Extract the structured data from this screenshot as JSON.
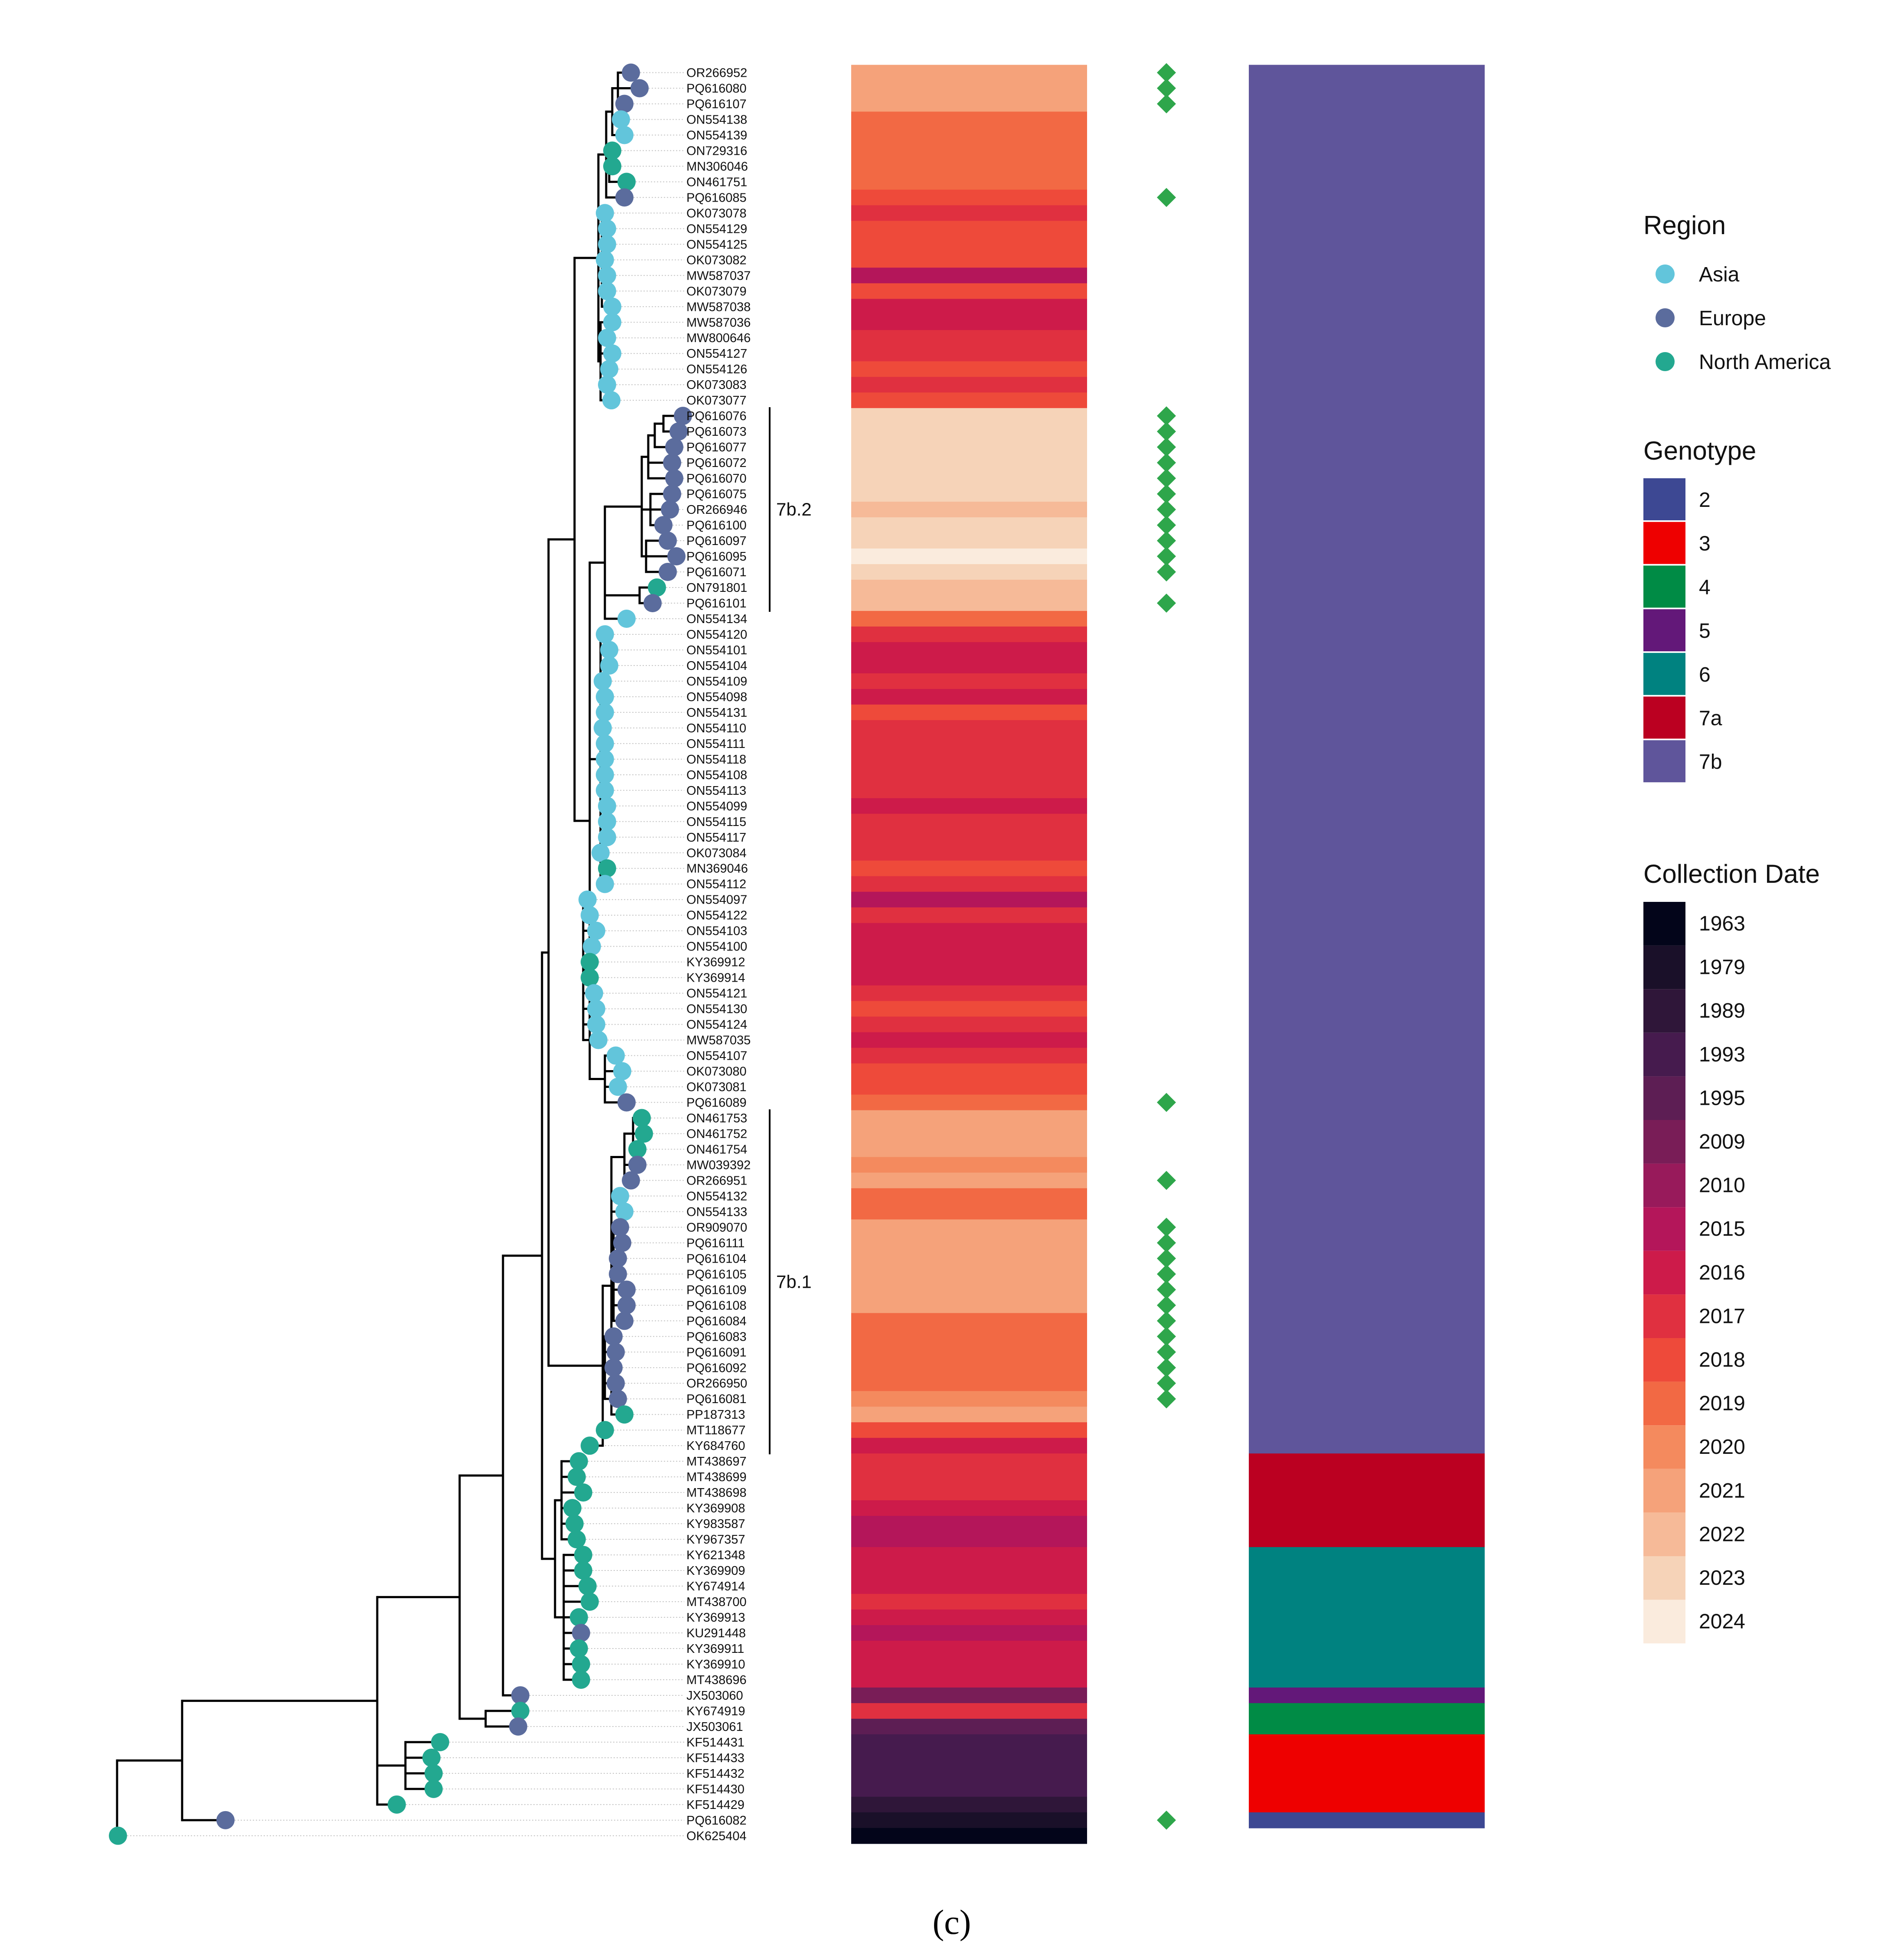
{
  "figure_label": "(c)",
  "tips": [
    "OR266952",
    "PQ616080",
    "PQ616107",
    "ON554138",
    "ON554139",
    "ON729316",
    "MN306046",
    "ON461751",
    "PQ616085",
    "OK073078",
    "ON554129",
    "ON554125",
    "OK073082",
    "MW587037",
    "OK073079",
    "MW587038",
    "MW587036",
    "MW800646",
    "ON554127",
    "ON554126",
    "OK073083",
    "OK073077",
    "PQ616076",
    "PQ616073",
    "PQ616077",
    "PQ616072",
    "PQ616070",
    "PQ616075",
    "OR266946",
    "PQ616100",
    "PQ616097",
    "PQ616095",
    "PQ616071",
    "ON791801",
    "PQ616101",
    "ON554134",
    "ON554120",
    "ON554101",
    "ON554104",
    "ON554109",
    "ON554098",
    "ON554131",
    "ON554110",
    "ON554111",
    "ON554118",
    "ON554108",
    "ON554113",
    "ON554099",
    "ON554115",
    "ON554117",
    "OK073084",
    "MN369046",
    "ON554112",
    "ON554097",
    "ON554122",
    "ON554103",
    "ON554100",
    "KY369912",
    "KY369914",
    "ON554121",
    "ON554130",
    "ON554124",
    "MW587035",
    "ON554107",
    "OK073080",
    "OK073081",
    "PQ616089",
    "ON461753",
    "ON461752",
    "ON461754",
    "MW039392",
    "OR266951",
    "ON554132",
    "ON554133",
    "OR909070",
    "PQ616111",
    "PQ616104",
    "PQ616105",
    "PQ616109",
    "PQ616108",
    "PQ616084",
    "PQ616083",
    "PQ616091",
    "PQ616092",
    "OR266950",
    "PQ616081",
    "PP187313",
    "MT118677",
    "KY684760",
    "MT438697",
    "MT438699",
    "MT438698",
    "KY369908",
    "KY983587",
    "KY967357",
    "KY621348",
    "KY369909",
    "KY674914",
    "MT438700",
    "KY369913",
    "KU291448",
    "KY369911",
    "KY369910",
    "MT438696",
    "JX503060",
    "KY674919",
    "JX503061",
    "KF514431",
    "KF514433",
    "KF514432",
    "KF514430",
    "KF514429",
    "PQ616082",
    "OK625404"
  ],
  "regions": [
    "Europe",
    "Europe",
    "Europe",
    "Asia",
    "Asia",
    "North America",
    "North America",
    "North America",
    "Europe",
    "Asia",
    "Asia",
    "Asia",
    "Asia",
    "Asia",
    "Asia",
    "Asia",
    "Asia",
    "Asia",
    "Asia",
    "Asia",
    "Asia",
    "Asia",
    "Europe",
    "Europe",
    "Europe",
    "Europe",
    "Europe",
    "Europe",
    "Europe",
    "Europe",
    "Europe",
    "Europe",
    "Europe",
    "North America",
    "Europe",
    "Asia",
    "Asia",
    "Asia",
    "Asia",
    "Asia",
    "Asia",
    "Asia",
    "Asia",
    "Asia",
    "Asia",
    "Asia",
    "Asia",
    "Asia",
    "Asia",
    "Asia",
    "Asia",
    "North America",
    "Asia",
    "Asia",
    "Asia",
    "Asia",
    "Asia",
    "North America",
    "North America",
    "Asia",
    "Asia",
    "Asia",
    "Asia",
    "Asia",
    "Asia",
    "Asia",
    "Europe",
    "North America",
    "North America",
    "North America",
    "Europe",
    "Europe",
    "Asia",
    "Asia",
    "Europe",
    "Europe",
    "Europe",
    "Europe",
    "Europe",
    "Europe",
    "Europe",
    "Europe",
    "Europe",
    "Europe",
    "Europe",
    "Europe",
    "North America",
    "North America",
    "North America",
    "North America",
    "North America",
    "North America",
    "North America",
    "North America",
    "North America",
    "North America",
    "North America",
    "North America",
    "North America",
    "North America",
    "Europe",
    "North America",
    "North America",
    "North America",
    "Europe",
    "North America",
    "Europe",
    "North America",
    "North America",
    "North America",
    "North America",
    "North America",
    "Europe",
    "North America"
  ],
  "collection_years": [
    2021,
    2021,
    2021,
    2019,
    2019,
    2019,
    2019,
    2019,
    2018,
    2017,
    2018,
    2018,
    2018,
    2015,
    2018,
    2016,
    2016,
    2017,
    2017,
    2018,
    2017,
    2018,
    2023,
    2023,
    2023,
    2023,
    2023,
    2023,
    2022,
    2023,
    2023,
    2024,
    2023,
    2022,
    2022,
    2019,
    2017,
    2016,
    2016,
    2017,
    2016,
    2018,
    2017,
    2017,
    2017,
    2017,
    2017,
    2016,
    2017,
    2017,
    2017,
    2018,
    2017,
    2015,
    2017,
    2016,
    2016,
    2016,
    2016,
    2017,
    2018,
    2017,
    2016,
    2017,
    2018,
    2018,
    2019,
    2021,
    2021,
    2021,
    2020,
    2021,
    2019,
    2019,
    2021,
    2021,
    2021,
    2021,
    2021,
    2021,
    2019,
    2019,
    2019,
    2019,
    2019,
    2020,
    2021,
    2018,
    2016,
    2017,
    2017,
    2017,
    2016,
    2015,
    2015,
    2016,
    2016,
    2016,
    2017,
    2016,
    2015,
    2016,
    2016,
    2016,
    2009,
    2017,
    1995,
    1993,
    1993,
    1993,
    1993,
    1989,
    1979,
    1963
  ],
  "genotypes": [
    "7b",
    "7b",
    "7b",
    "7b",
    "7b",
    "7b",
    "7b",
    "7b",
    "7b",
    "7b",
    "7b",
    "7b",
    "7b",
    "7b",
    "7b",
    "7b",
    "7b",
    "7b",
    "7b",
    "7b",
    "7b",
    "7b",
    "7b",
    "7b",
    "7b",
    "7b",
    "7b",
    "7b",
    "7b",
    "7b",
    "7b",
    "7b",
    "7b",
    "7b",
    "7b",
    "7b",
    "7b",
    "7b",
    "7b",
    "7b",
    "7b",
    "7b",
    "7b",
    "7b",
    "7b",
    "7b",
    "7b",
    "7b",
    "7b",
    "7b",
    "7b",
    "7b",
    "7b",
    "7b",
    "7b",
    "7b",
    "7b",
    "7b",
    "7b",
    "7b",
    "7b",
    "7b",
    "7b",
    "7b",
    "7b",
    "7b",
    "7b",
    "7b",
    "7b",
    "7b",
    "7b",
    "7b",
    "7b",
    "7b",
    "7b",
    "7b",
    "7b",
    "7b",
    "7b",
    "7b",
    "7b",
    "7b",
    "7b",
    "7b",
    "7b",
    "7b",
    "7b",
    "7b",
    "7b",
    "7a",
    "7a",
    "7a",
    "7a",
    "7a",
    "7a",
    "6",
    "6",
    "6",
    "6",
    "6",
    "6",
    "6",
    "6",
    "6",
    "5",
    "4",
    "4",
    "3",
    "3",
    "3",
    "3",
    "3",
    "2",
    ""
  ],
  "marked_tips": [
    "OR266952",
    "PQ616080",
    "PQ616107",
    "PQ616085",
    "PQ616076",
    "PQ616073",
    "PQ616077",
    "PQ616072",
    "PQ616070",
    "PQ616075",
    "OR266946",
    "PQ616100",
    "PQ616097",
    "PQ616095",
    "PQ616071",
    "PQ616101",
    "PQ616089",
    "OR266951",
    "OR909070",
    "PQ616111",
    "PQ616104",
    "PQ616105",
    "PQ616109",
    "PQ616108",
    "PQ616084",
    "PQ616083",
    "PQ616091",
    "PQ616092",
    "OR266950",
    "PQ616081",
    "PQ616082"
  ],
  "clades": [
    {
      "label": "7b.2",
      "from": "PQ616076",
      "to": "PQ616101"
    },
    {
      "label": "7b.1",
      "from": "ON461753",
      "to": "KY684760"
    }
  ],
  "legend": {
    "region": {
      "title": "Region",
      "items": [
        {
          "label": "Asia",
          "color": "#62C5DB"
        },
        {
          "label": "Europe",
          "color": "#5B6C9D"
        },
        {
          "label": "North America",
          "color": "#23A890"
        }
      ]
    },
    "genotype": {
      "title": "Genotype",
      "items": [
        {
          "label": "2",
          "color": "#3D4893"
        },
        {
          "label": "3",
          "color": "#EE0000"
        },
        {
          "label": "4",
          "color": "#008B45"
        },
        {
          "label": "5",
          "color": "#631879"
        },
        {
          "label": "6",
          "color": "#008280"
        },
        {
          "label": "7a",
          "color": "#BB0021"
        },
        {
          "label": "7b",
          "color": "#5F559B"
        }
      ]
    },
    "collection_date": {
      "title": "Collection Date",
      "items": [
        {
          "label": "1963",
          "color": "#03051A"
        },
        {
          "label": "1979",
          "color": "#1A1029"
        },
        {
          "label": "1989",
          "color": "#2F1639"
        },
        {
          "label": "1993",
          "color": "#461B4E"
        },
        {
          "label": "1995",
          "color": "#5D1E54"
        },
        {
          "label": "2009",
          "color": "#791D57"
        },
        {
          "label": "2010",
          "color": "#981A5B"
        },
        {
          "label": "2015",
          "color": "#B4165A"
        },
        {
          "label": "2016",
          "color": "#CD1B4A"
        },
        {
          "label": "2017",
          "color": "#E03040"
        },
        {
          "label": "2018",
          "color": "#EE4A3A"
        },
        {
          "label": "2019",
          "color": "#F26944"
        },
        {
          "label": "2020",
          "color": "#F48A5E"
        },
        {
          "label": "2021",
          "color": "#F5A27A"
        },
        {
          "label": "2022",
          "color": "#F6BA98"
        },
        {
          "label": "2023",
          "color": "#F6D3B8"
        },
        {
          "label": "2024",
          "color": "#FAEBDD"
        }
      ]
    }
  },
  "colors": {
    "marker": "#2EA64B",
    "tree": "#000000",
    "tip_label": "#111111",
    "guide": "#C8C8C8"
  }
}
